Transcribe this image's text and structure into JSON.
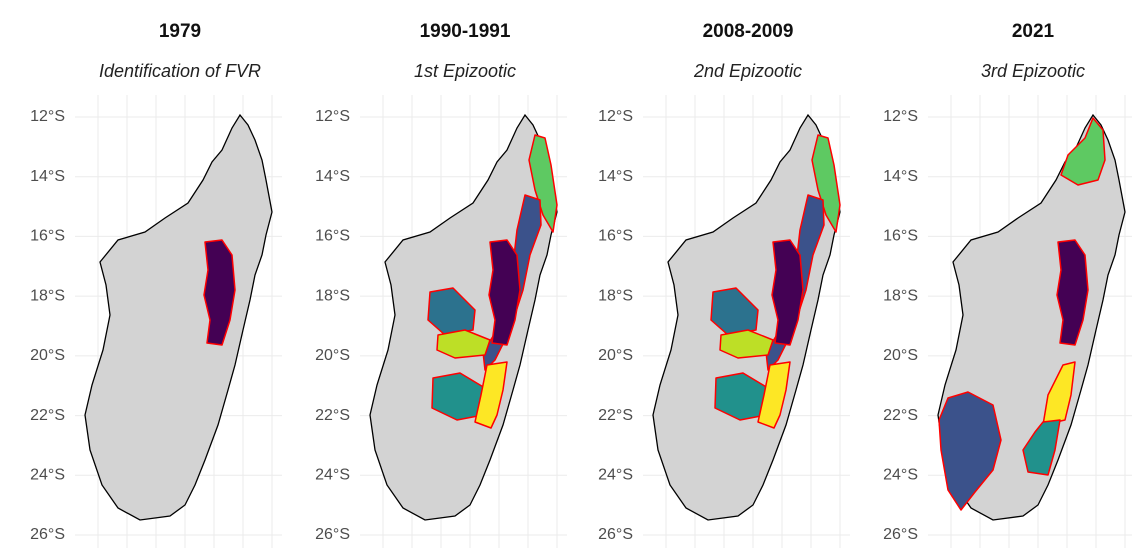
{
  "panels": [
    {
      "title": "1979",
      "subtitle": "Identification of FVR"
    },
    {
      "title": "1990-1991",
      "subtitle": "1st Epizootic"
    },
    {
      "title": "2008-2009",
      "subtitle": "2nd Epizootic"
    },
    {
      "title": "2021",
      "subtitle": "3rd Epizootic"
    }
  ],
  "lat_ticks": [
    {
      "value": -12,
      "label": "12°S"
    },
    {
      "value": -14,
      "label": "14°S"
    },
    {
      "value": -16,
      "label": "16°S"
    },
    {
      "value": -18,
      "label": "18°S"
    },
    {
      "value": -20,
      "label": "20°S"
    },
    {
      "value": -22,
      "label": "22°S"
    },
    {
      "value": -24,
      "label": "24°S"
    },
    {
      "value": -26,
      "label": "26°S"
    }
  ]
}
